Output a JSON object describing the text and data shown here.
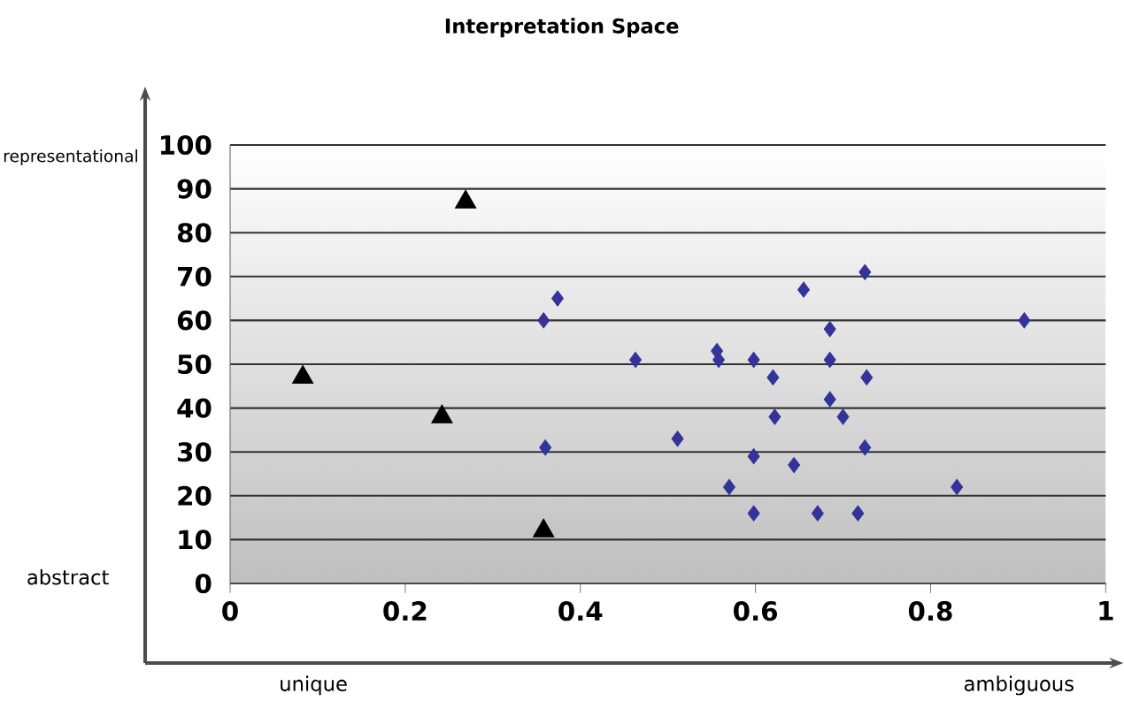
{
  "chart_data": {
    "type": "scatter",
    "title": "Interpretation Space",
    "annotations": [
      "representational",
      "abstract",
      "unique",
      "ambiguous"
    ],
    "xlim": [
      0,
      1
    ],
    "xticks": [
      0,
      {
        "value": 0.2,
        "label": "0.2"
      },
      {
        "value": 0.4,
        "label": "0.4"
      },
      {
        "value": 0.6,
        "label": "0.6"
      },
      {
        "value": 0.8,
        "label": "0.8"
      },
      1
    ],
    "ylim": [
      0,
      100
    ],
    "yticks": [
      0,
      10,
      20,
      30,
      40,
      50,
      60,
      70,
      80,
      90,
      100
    ],
    "grid": "y",
    "series": [
      {
        "color": "#333399",
        "marker": "diamond",
        "x": [
          0.358,
          0.374,
          0.36,
          0.463,
          0.511,
          0.556,
          0.558,
          0.598,
          0.62,
          0.622,
          0.598,
          0.57,
          0.598,
          0.644,
          0.655,
          0.685,
          0.685,
          0.685,
          0.7,
          0.671,
          0.717,
          0.725,
          0.727,
          0.725,
          0.83,
          0.907
        ],
        "values": [
          60,
          65,
          31,
          51,
          33,
          53,
          51,
          51,
          47,
          38,
          29,
          22,
          16,
          27,
          67,
          58,
          51,
          42,
          38,
          16,
          16,
          71,
          47,
          31,
          22,
          60
        ]
      },
      {
        "color": "#000000",
        "marker": "triangle",
        "x": [
          0.083,
          0.242,
          0.269,
          0.358
        ],
        "values": [
          47,
          38,
          87,
          12
        ]
      }
    ]
  }
}
